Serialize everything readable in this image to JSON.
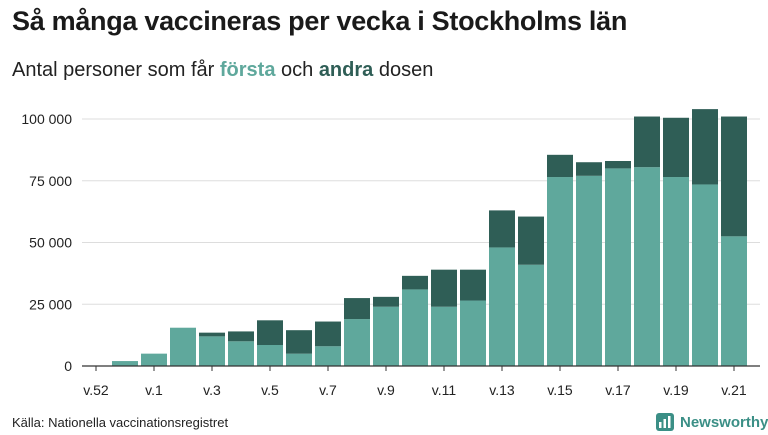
{
  "header": {
    "title": "Så många vaccineras per vecka i Stockholms län",
    "subtitle_before": "Antal personer som får ",
    "subtitle_first": "första",
    "subtitle_middle": " och ",
    "subtitle_second": "andra",
    "subtitle_after": " dosen"
  },
  "footer": {
    "source": "Källa: Nationella vaccinationsregistret",
    "brand": "Newsworthy",
    "brand_icon": "bar-chart-logo-icon"
  },
  "colors": {
    "first_dose": "#5fa89c",
    "second_dose": "#2f5e56",
    "grid": "#dddddd",
    "axis": "#333333",
    "brand": "#3b8f86"
  },
  "chart_data": {
    "type": "bar",
    "stacked": true,
    "categories": [
      "v.52",
      "v.53",
      "v.1",
      "v.2",
      "v.3",
      "v.4",
      "v.5",
      "v.6",
      "v.7",
      "v.8",
      "v.9",
      "v.10",
      "v.11",
      "v.12",
      "v.13",
      "v.14",
      "v.15",
      "v.16",
      "v.17",
      "v.18",
      "v.19",
      "v.20",
      "v.21"
    ],
    "tick_labels": [
      "v.52",
      "v.1",
      "v.3",
      "v.5",
      "v.7",
      "v.9",
      "v.11",
      "v.13",
      "v.15",
      "v.17",
      "v.19",
      "v.21"
    ],
    "series": [
      {
        "name": "första",
        "values": [
          0,
          2000,
          5000,
          15500,
          12000,
          10000,
          8500,
          5000,
          8000,
          19000,
          24000,
          31000,
          24000,
          26500,
          48000,
          41000,
          76500,
          77000,
          80000,
          80500,
          76500,
          73500,
          52500
        ]
      },
      {
        "name": "andra",
        "values": [
          0,
          0,
          0,
          0,
          1500,
          4000,
          10000,
          9500,
          10000,
          8500,
          4000,
          5500,
          15000,
          12500,
          15000,
          19500,
          9000,
          5500,
          3000,
          20500,
          24000,
          30500,
          48500
        ]
      }
    ],
    "y_ticks": [
      0,
      25000,
      50000,
      75000,
      100000
    ],
    "y_tick_labels": [
      "0",
      "25 000",
      "50 000",
      "75 000",
      "100 000"
    ],
    "ylim": [
      0,
      105000
    ],
    "grid": true,
    "legend": "none (colored words in subtitle)"
  }
}
